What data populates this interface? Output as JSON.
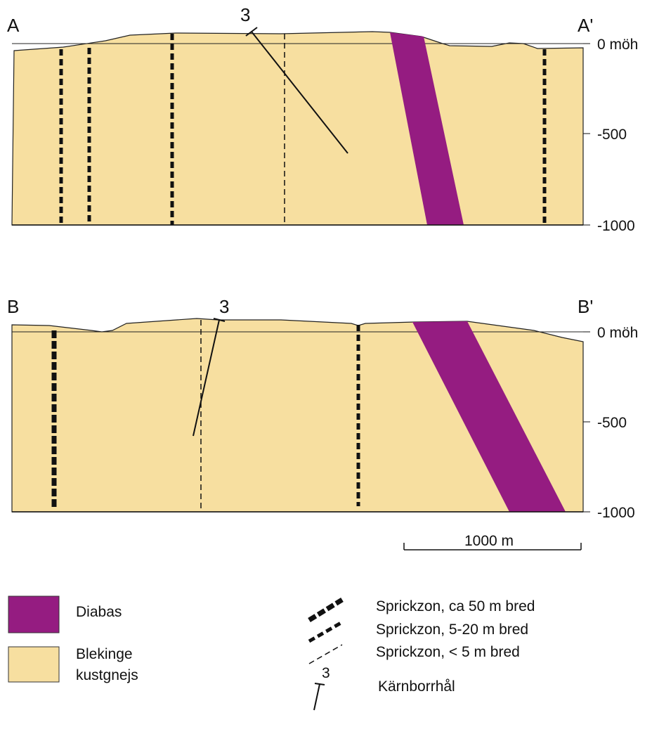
{
  "sectionA": {
    "start": "A",
    "end": "A'",
    "borehole": "3",
    "depths": [
      "0 möh",
      "-500",
      "-1000"
    ]
  },
  "sectionB": {
    "start": "B",
    "end": "B'",
    "borehole": "3",
    "depths": [
      "0 möh",
      "-500",
      "-1000"
    ]
  },
  "scale": "1000 m",
  "legend": {
    "diabas": "Diabas",
    "gneiss": [
      "Blekinge",
      "kustgnejs"
    ],
    "zones": [
      "Sprickzon, ca 50 m bred",
      "Sprickzon, 5-20 m bred",
      "Sprickzon, < 5 m bred"
    ],
    "borehole_number": "3",
    "borehole": "Kärnborrhål"
  }
}
